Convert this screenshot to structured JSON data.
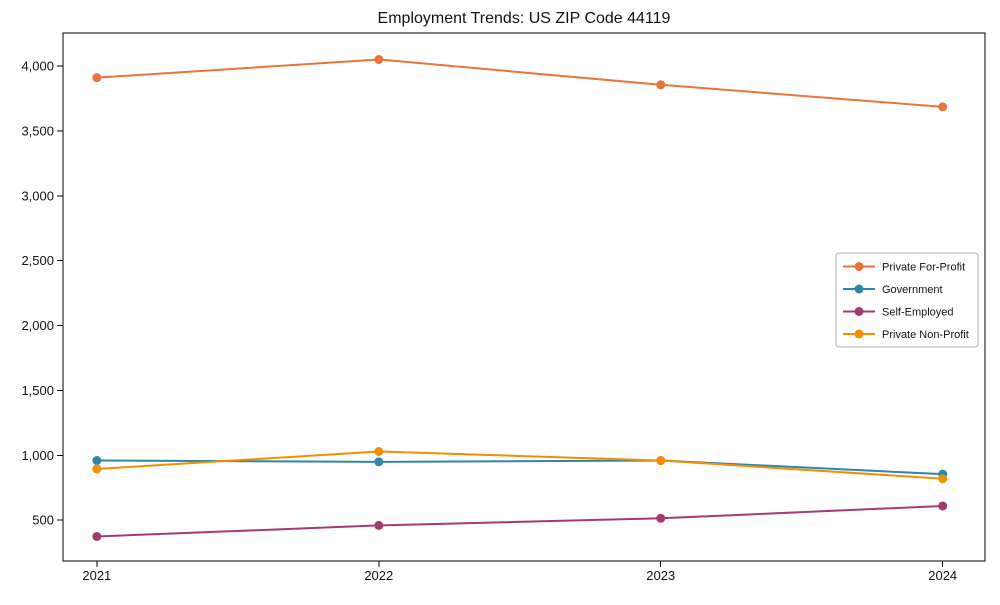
{
  "chart_data": {
    "type": "line",
    "title": "Employment Trends: US ZIP Code 44119",
    "x": [
      2021,
      2022,
      2023,
      2024
    ],
    "xtick_labels": [
      "2021",
      "2022",
      "2023",
      "2024"
    ],
    "yticks": [
      500,
      1000,
      1500,
      2000,
      2500,
      3000,
      3500,
      4000
    ],
    "xlim": [
      2020.88,
      2024.15
    ],
    "ylim": [
      186,
      4254
    ],
    "grid": false,
    "marker": "circle",
    "line_width": 2,
    "marker_radius": 4.5,
    "axis_color": "#000000",
    "text_color": "#111111",
    "legend": {
      "position": "center-right",
      "border_color": "#b0b0b0",
      "background": "#ffffff",
      "entries": [
        "Private For-Profit",
        "Government",
        "Self-Employed",
        "Private Non-Profit"
      ]
    },
    "series": [
      {
        "name": "Private For-Profit",
        "color": "#e8743b",
        "values": [
          3910,
          4050,
          3855,
          3685
        ]
      },
      {
        "name": "Government",
        "color": "#2e86ab",
        "values": [
          960,
          950,
          960,
          855
        ]
      },
      {
        "name": "Self-Employed",
        "color": "#a23b72",
        "values": [
          375,
          460,
          515,
          610
        ]
      },
      {
        "name": "Private Non-Profit",
        "color": "#f18f01",
        "values": [
          895,
          1030,
          960,
          820
        ]
      }
    ]
  }
}
